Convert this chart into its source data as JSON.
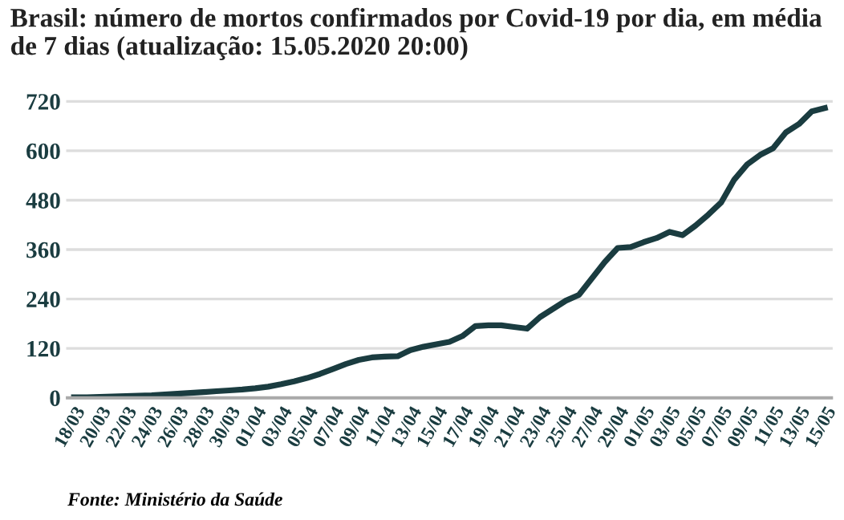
{
  "chart_data": {
    "type": "line",
    "title": "Brasil: número de mortos confirmados por Covid-19 por dia, em média de 7 dias (atualização: 15.05.2020 20:00)",
    "categories": [
      "18/03",
      null,
      "20/03",
      null,
      "22/03",
      null,
      "24/03",
      null,
      "26/03",
      null,
      "28/03",
      null,
      "30/03",
      null,
      "01/04",
      null,
      "03/04",
      null,
      "05/04",
      null,
      "07/04",
      null,
      "09/04",
      null,
      "11/04",
      null,
      "13/04",
      null,
      "15/04",
      null,
      "17/04",
      null,
      "19/04",
      null,
      "21/04",
      null,
      "23/04",
      null,
      "25/04",
      null,
      "27/04",
      null,
      "29/04",
      null,
      "01/05",
      null,
      "03/05",
      null,
      "05/05",
      null,
      "07/05",
      null,
      "09/05",
      null,
      "11/05",
      null,
      "13/05",
      null,
      "15/05"
    ],
    "series": [
      {
        "color": "#1a3c40",
        "values": [
          1,
          1,
          2,
          3,
          4,
          5,
          6,
          8,
          10,
          12,
          14,
          16,
          18,
          20,
          23,
          27,
          33,
          40,
          48,
          58,
          70,
          82,
          92,
          98,
          100,
          101,
          116,
          124,
          130,
          136,
          150,
          174,
          176,
          176,
          172,
          168,
          196,
          216,
          236,
          250,
          290,
          330,
          364,
          366,
          378,
          388,
          403,
          395,
          418,
          445,
          475,
          530,
          567,
          590,
          606,
          645,
          665,
          696,
          704
        ]
      }
    ],
    "ylim": [
      0,
      720
    ],
    "yticks": [
      0,
      120,
      240,
      360,
      480,
      600,
      720
    ],
    "grid": "y",
    "legend": false,
    "marker": "none",
    "line_style": "solid",
    "annotations": [
      "Fonte: Ministério da Saúde"
    ]
  }
}
